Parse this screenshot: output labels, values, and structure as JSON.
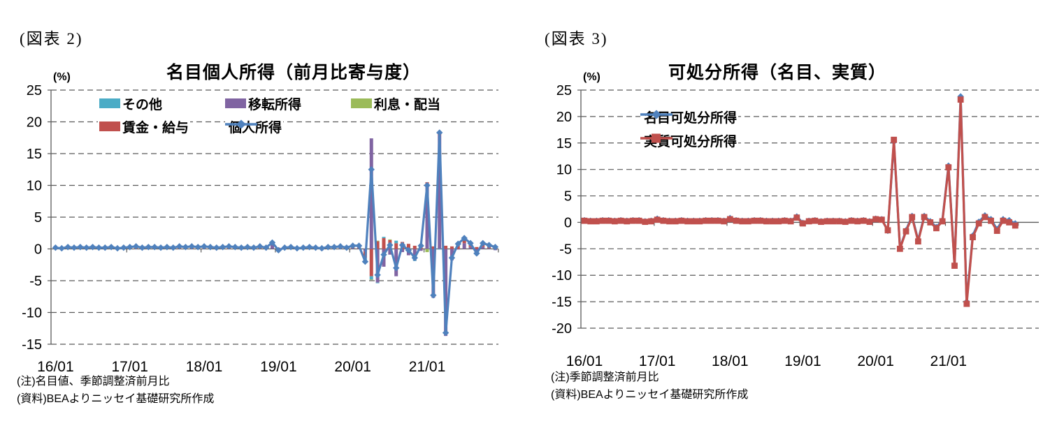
{
  "chart_data": [
    {
      "figure_label": "(図表 2)",
      "title": "名目個人所得（前月比寄与度）",
      "unit": "(%)",
      "type": "bar",
      "subtype": "stacked-bar-with-line-overlay",
      "ylim": [
        -15,
        25
      ],
      "y_ticks": [
        25,
        20,
        15,
        10,
        5,
        0,
        -5,
        -10,
        -15
      ],
      "x_tick_labels": [
        "16/01",
        "17/01",
        "18/01",
        "19/01",
        "20/01",
        "21/01"
      ],
      "x_tick_interval_months": 12,
      "grid": "dashed-horizontal",
      "gridline_color": "#595959",
      "axis_color": "#595959",
      "legend_position": "top-inside",
      "notes": [
        "(注)名目値、季節調整済前月比",
        "(資料)BEAよりニッセイ基礎研究所作成"
      ],
      "categories": [
        "16/01",
        "16/02",
        "16/03",
        "16/04",
        "16/05",
        "16/06",
        "16/07",
        "16/08",
        "16/09",
        "16/10",
        "16/11",
        "16/12",
        "17/01",
        "17/02",
        "17/03",
        "17/04",
        "17/05",
        "17/06",
        "17/07",
        "17/08",
        "17/09",
        "17/10",
        "17/11",
        "17/12",
        "18/01",
        "18/02",
        "18/03",
        "18/04",
        "18/05",
        "18/06",
        "18/07",
        "18/08",
        "18/09",
        "18/10",
        "18/11",
        "18/12",
        "19/01",
        "19/02",
        "19/03",
        "19/04",
        "19/05",
        "19/06",
        "19/07",
        "19/08",
        "19/09",
        "19/10",
        "19/11",
        "19/12",
        "20/01",
        "20/02",
        "20/03",
        "20/04",
        "20/05",
        "20/06",
        "20/07",
        "20/08",
        "20/09",
        "20/10",
        "20/11",
        "20/12",
        "21/01",
        "21/02",
        "21/03",
        "21/04",
        "21/05",
        "21/06",
        "21/07",
        "21/08",
        "21/09",
        "21/10",
        "21/11",
        "21/12"
      ],
      "stack_order": [
        "移転所得",
        "賃金・給与",
        "その他",
        "利息・配当"
      ],
      "series": [
        {
          "name": "その他",
          "type": "bar",
          "color": "#4BACC6",
          "values": [
            0,
            0,
            0.1,
            0,
            0,
            0,
            0,
            0,
            0,
            0.1,
            0,
            0,
            0,
            0.1,
            0,
            0,
            0,
            0,
            0,
            0,
            0.1,
            0,
            0,
            0,
            0,
            0,
            0,
            0,
            0.1,
            0,
            0,
            0,
            0,
            0,
            0,
            0.1,
            -0.4,
            0,
            0,
            0,
            0,
            0.1,
            0,
            0,
            0,
            0,
            0,
            0,
            0.1,
            0.1,
            -0.4,
            -0.5,
            -0.1,
            0.2,
            0,
            0.4,
            0,
            0,
            -0.1,
            0.1,
            0,
            0,
            -0.1,
            0,
            0,
            0.1,
            0.2,
            0,
            -0.2,
            0,
            0.1,
            0.1
          ]
        },
        {
          "name": "移転所得",
          "type": "bar",
          "color": "#8064A2",
          "values": [
            0,
            -0.1,
            0,
            0,
            0.1,
            0,
            0.1,
            0,
            -0.1,
            0,
            -0.1,
            0,
            0,
            0,
            -0.1,
            0.1,
            0.1,
            -0.1,
            0.1,
            0,
            0,
            0.1,
            0,
            0.1,
            0.1,
            0,
            -0.1,
            0.1,
            0,
            0.1,
            -0.1,
            0.1,
            0,
            0,
            0,
            0.6,
            0.1,
            0,
            0,
            0,
            0,
            0,
            0,
            -0.2,
            0.1,
            0.1,
            0.1,
            -0.1,
            0.1,
            0.1,
            -0.4,
            17.4,
            -5.3,
            -2.8,
            -0.9,
            -4.3,
            -0.5,
            -1.0,
            -1.8,
            -0.3,
            10.2,
            -7.7,
            17.9,
            -13.7,
            -1.8,
            -0.1,
            0.9,
            0.3,
            -0.8,
            0.3,
            0.1,
            -0.2
          ]
        },
        {
          "name": "利息・配当",
          "type": "bar",
          "color": "#9BBB59",
          "values": [
            0,
            0,
            0,
            0.1,
            0,
            0,
            0,
            0,
            0.1,
            0,
            0,
            0,
            0.1,
            0,
            0,
            0,
            0,
            0.1,
            0,
            0,
            0,
            0,
            0.1,
            0,
            0,
            0.1,
            0,
            0,
            0,
            0,
            0.1,
            0,
            0,
            0.1,
            0,
            0,
            0,
            0,
            0.1,
            0,
            0,
            0,
            0,
            0.1,
            0,
            0,
            0,
            0.1,
            0,
            0,
            -0.2,
            -0.1,
            0.1,
            0,
            0.1,
            0,
            0,
            0,
            0,
            0.2,
            -0.5,
            0,
            0,
            0,
            0,
            0.2,
            0.1,
            0.1,
            0,
            0.1,
            0,
            0
          ]
        },
        {
          "name": "賃金・給与",
          "type": "bar",
          "color": "#C0504D",
          "values": [
            0.2,
            0.2,
            0.2,
            0.2,
            0.2,
            0.2,
            0.2,
            0.2,
            0.2,
            0.2,
            0.2,
            0.2,
            0.2,
            0.3,
            0.2,
            0.2,
            0.2,
            0.2,
            0.2,
            0.2,
            0.3,
            0.2,
            0.3,
            0.2,
            0.3,
            0.2,
            0.2,
            0.2,
            0.3,
            0.2,
            0.2,
            0.2,
            0.2,
            0.3,
            0.2,
            0.3,
            0.1,
            0.2,
            0.2,
            0.1,
            0.2,
            0.2,
            0.2,
            0.2,
            0.2,
            0.2,
            0.3,
            0.2,
            0.3,
            0.3,
            -1.0,
            -4.3,
            1.2,
            1.7,
            1.4,
            0.9,
            1.1,
            0.8,
            0.5,
            0.5,
            0.3,
            0.4,
            0.5,
            0.5,
            0.4,
            0.6,
            0.5,
            0.5,
            0.3,
            0.5,
            0.4,
            0.4
          ]
        },
        {
          "name": "個人所得",
          "type": "line",
          "marker": "diamond",
          "color": "#4F81BD",
          "values": [
            0.2,
            0.1,
            0.3,
            0.2,
            0.3,
            0.2,
            0.3,
            0.2,
            0.2,
            0.3,
            0.1,
            0.2,
            0.3,
            0.4,
            0.2,
            0.3,
            0.3,
            0.2,
            0.3,
            0.2,
            0.4,
            0.3,
            0.4,
            0.3,
            0.4,
            0.3,
            0.2,
            0.3,
            0.4,
            0.3,
            0.2,
            0.3,
            0.2,
            0.4,
            0.2,
            1.0,
            -0.2,
            0.2,
            0.3,
            0.1,
            0.2,
            0.3,
            0.2,
            0.1,
            0.3,
            0.3,
            0.4,
            0.2,
            0.5,
            0.5,
            -2.0,
            12.5,
            -4.1,
            -0.9,
            0.6,
            -3.0,
            0.6,
            -0.2,
            -1.4,
            0.5,
            10.0,
            -7.3,
            18.3,
            -13.2,
            -1.4,
            0.8,
            1.7,
            0.9,
            -0.7,
            0.9,
            0.6,
            0.3
          ]
        }
      ]
    },
    {
      "figure_label": "(図表 3)",
      "title": "可処分所得（名目、実質）",
      "unit": "(%)",
      "type": "line",
      "ylim": [
        -20,
        25
      ],
      "y_ticks": [
        25,
        20,
        15,
        10,
        5,
        0,
        -5,
        -10,
        -15,
        -20
      ],
      "x_tick_labels": [
        "16/01",
        "17/01",
        "18/01",
        "19/01",
        "20/01",
        "21/01"
      ],
      "x_tick_interval_months": 12,
      "grid": "dashed-horizontal",
      "gridline_color": "#595959",
      "axis_color": "#595959",
      "legend_position": "top-left-inside",
      "notes": [
        "(注)季節調整済前月比",
        "(資料)BEAよりニッセイ基礎研究所作成"
      ],
      "categories": [
        "16/01",
        "16/02",
        "16/03",
        "16/04",
        "16/05",
        "16/06",
        "16/07",
        "16/08",
        "16/09",
        "16/10",
        "16/11",
        "16/12",
        "17/01",
        "17/02",
        "17/03",
        "17/04",
        "17/05",
        "17/06",
        "17/07",
        "17/08",
        "17/09",
        "17/10",
        "17/11",
        "17/12",
        "18/01",
        "18/02",
        "18/03",
        "18/04",
        "18/05",
        "18/06",
        "18/07",
        "18/08",
        "18/09",
        "18/10",
        "18/11",
        "18/12",
        "19/01",
        "19/02",
        "19/03",
        "19/04",
        "19/05",
        "19/06",
        "19/07",
        "19/08",
        "19/09",
        "19/10",
        "19/11",
        "19/12",
        "20/01",
        "20/02",
        "20/03",
        "20/04",
        "20/05",
        "20/06",
        "20/07",
        "20/08",
        "20/09",
        "20/10",
        "20/11",
        "20/12",
        "21/01",
        "21/02",
        "21/03",
        "21/04",
        "21/05",
        "21/06",
        "21/07",
        "21/08",
        "21/09",
        "21/10",
        "21/11",
        "21/12"
      ],
      "series": [
        {
          "name": "名目可処分所得",
          "type": "line",
          "marker": "diamond",
          "color": "#4F81BD",
          "values": [
            0.4,
            0.3,
            0.3,
            0.4,
            0.4,
            0.3,
            0.4,
            0.3,
            0.4,
            0.4,
            0.2,
            0.3,
            0.7,
            0.4,
            0.3,
            0.3,
            0.4,
            0.3,
            0.3,
            0.3,
            0.4,
            0.4,
            0.4,
            0.3,
            0.8,
            0.4,
            0.3,
            0.3,
            0.4,
            0.4,
            0.3,
            0.3,
            0.3,
            0.4,
            0.3,
            1.1,
            -0.1,
            0.3,
            0.4,
            0.2,
            0.3,
            0.3,
            0.3,
            0.2,
            0.4,
            0.3,
            0.4,
            0.2,
            0.7,
            0.6,
            -1.6,
            15.2,
            -4.9,
            -1.5,
            1.2,
            -3.4,
            1.2,
            0.2,
            -0.9,
            0.4,
            10.7,
            -8.0,
            23.8,
            -15.0,
            -2.5,
            0.1,
            1.3,
            0.6,
            -1.3,
            0.6,
            0.4,
            -0.2
          ]
        },
        {
          "name": "実質可処分所得",
          "type": "line",
          "marker": "square",
          "color": "#C0504D",
          "values": [
            0.3,
            0.2,
            0.2,
            0.3,
            0.3,
            0.2,
            0.3,
            0.2,
            0.3,
            0.3,
            0.1,
            0.2,
            0.5,
            0.3,
            0.2,
            0.2,
            0.3,
            0.2,
            0.2,
            0.2,
            0.3,
            0.3,
            0.3,
            0.2,
            0.6,
            0.3,
            0.2,
            0.2,
            0.3,
            0.3,
            0.2,
            0.2,
            0.2,
            0.3,
            0.2,
            0.9,
            -0.2,
            0.2,
            0.3,
            0.1,
            0.2,
            0.2,
            0.2,
            0.1,
            0.3,
            0.2,
            0.3,
            0.1,
            0.6,
            0.5,
            -1.5,
            15.6,
            -5.0,
            -1.7,
            1.0,
            -3.6,
            1.0,
            0.0,
            -1.1,
            0.2,
            10.4,
            -8.2,
            23.2,
            -15.4,
            -2.8,
            -0.2,
            1.0,
            0.3,
            -1.6,
            0.3,
            0.0,
            -0.6
          ]
        }
      ]
    }
  ]
}
